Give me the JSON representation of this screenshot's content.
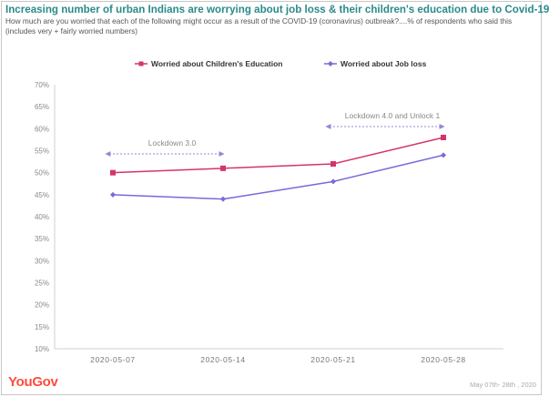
{
  "header": {
    "title": "Increasing number of urban Indians are worrying about job loss & their children's education due to Covid-19",
    "subtitle": "How much are you worried that each of the following might occur as a result of the COVID-19 (coronavirus) outbreak?....% of respondents who said this (includes very + fairly worried numbers)"
  },
  "chart_data": {
    "type": "line",
    "title": "Increasing number of urban Indians are worrying about job loss & their children's education due to Covid-19",
    "categories": [
      "2020-05-07",
      "2020-05-14",
      "2020-05-21",
      "2020-05-28"
    ],
    "series": [
      {
        "name": "Worried about Children's Education",
        "values": [
          50,
          51,
          52,
          58
        ],
        "color": "#d6336c",
        "marker": "square"
      },
      {
        "name": "Worried about Job loss",
        "values": [
          45,
          44,
          48,
          54
        ],
        "color": "#7b68d9",
        "marker": "diamond"
      }
    ],
    "y_ticks": [
      "10%",
      "15%",
      "20%",
      "25%",
      "30%",
      "35%",
      "40%",
      "45%",
      "50%",
      "55%",
      "60%",
      "65%",
      "70%"
    ],
    "ylim": [
      10,
      70
    ],
    "grid": false,
    "legend_position": "top",
    "annotations": [
      {
        "text": "Lockdown 3.0",
        "from": "2020-05-07",
        "to": "2020-05-14"
      },
      {
        "text": "Lockdown 4.0 and Unlock 1",
        "from": "2020-05-21",
        "to": "2020-05-28"
      }
    ]
  },
  "footer": {
    "brand": "YouGov",
    "note": "May 07th- 28th , 2020"
  },
  "colors": {
    "title": "#2b8a8a",
    "brand": "#ff4b3e",
    "axis": "#d0d0d0",
    "annotation": "#9a86d6"
  }
}
